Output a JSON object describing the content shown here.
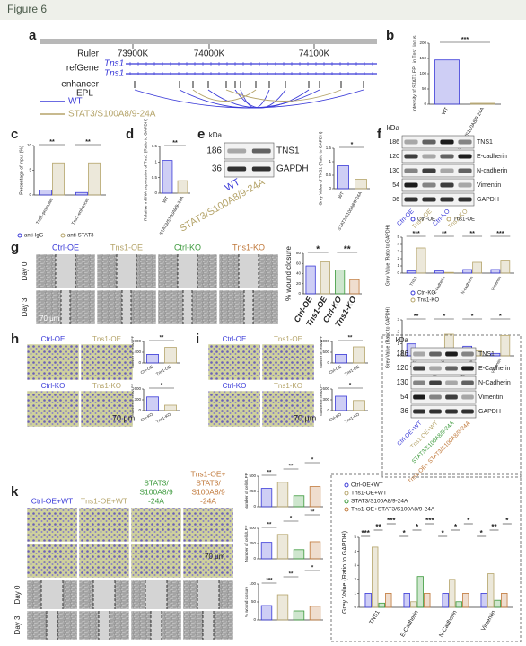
{
  "header": {
    "title": "Figure 6"
  },
  "a": {
    "letter": "a",
    "ruler": "Ruler",
    "ruler_marks": [
      "73900K",
      "74000K",
      "74100K"
    ],
    "refgene": "refGene",
    "genes": [
      "Tns1",
      "Tns1"
    ],
    "enhancer": "enhancer",
    "epl": "EPL",
    "legend": [
      {
        "name": "WT",
        "color": "#3a3ad8"
      },
      {
        "name": "STAT3/S100A8/9-24A",
        "color": "#b5a46a"
      }
    ]
  },
  "b": {
    "letter": "b",
    "chart": {
      "type": "bar",
      "ylabel": "Intensity of STAT3 EPL in Tns1 locus",
      "categories": [
        "WT",
        "STAT3/S100A8/9-24A"
      ],
      "values": [
        145,
        3
      ],
      "colors": [
        "#3a3ad8",
        "#b5a46a"
      ],
      "ylim": [
        0,
        200
      ],
      "yticks": [
        0,
        50,
        100,
        150,
        200
      ],
      "sig": [
        "***"
      ]
    }
  },
  "c": {
    "letter": "c",
    "chart": {
      "type": "bar",
      "ylabel": "Percentage of input (%)",
      "categories": [
        "Tns1-promoter",
        "Tns1-enhancer"
      ],
      "series": [
        {
          "name": "anti-IgG",
          "color": "#3a3ad8",
          "values": [
            1,
            0.5
          ]
        },
        {
          "name": "anti-STAT3",
          "color": "#b5a46a",
          "values": [
            6.5,
            6.5
          ]
        }
      ],
      "ylim": [
        0,
        10
      ],
      "yticks": [
        0,
        5,
        10
      ],
      "sig": [
        "**",
        "**"
      ]
    }
  },
  "d": {
    "letter": "d",
    "chart": {
      "type": "bar",
      "ylabel": "Relative mRNA expression of Tns1 (Ratio to GAPDH)",
      "categories": [
        "WT",
        "STAT3/S100A8/9-24A"
      ],
      "values": [
        1.05,
        0.4
      ],
      "colors": [
        "#3a3ad8",
        "#b5a46a"
      ],
      "ylim": [
        0,
        1.5
      ],
      "yticks": [
        0,
        0.5,
        1,
        1.5
      ],
      "sig": [
        "**"
      ]
    }
  },
  "e": {
    "letter": "e",
    "blot": {
      "unit": "kDa",
      "kda": [
        186,
        36
      ],
      "proteins": [
        "TNS1",
        "GAPDH"
      ],
      "lanes": [
        "WT",
        "STAT3/S100A8/9-24A"
      ],
      "lane_colors": [
        "#3a3ad8",
        "#b5a46a"
      ]
    },
    "chart": {
      "type": "bar",
      "ylabel": "Grey Value of TNS1 (Ratio to GAPDH)",
      "categories": [
        "WT",
        "STAT3/S100A8/9-24A"
      ],
      "values": [
        0.85,
        0.35
      ],
      "colors": [
        "#3a3ad8",
        "#b5a46a"
      ],
      "ylim": [
        0,
        1.5
      ],
      "yticks": [
        0,
        0.5,
        1,
        1.5
      ],
      "sig": [
        "*"
      ]
    }
  },
  "f": {
    "letter": "f",
    "blot": {
      "unit": "kDa",
      "kda": [
        186,
        120,
        130,
        54,
        36
      ],
      "proteins": [
        "TNS1",
        "E-cadherin",
        "N-cadherin",
        "Vimentin",
        "GAPDH"
      ],
      "lanes": [
        "Ctrl-OE",
        "Tns1-OE",
        "Ctrl-KO",
        "Tns1-KO"
      ],
      "lane_colors": [
        "#3a3ad8",
        "#b5a46a",
        "#3a3ad8",
        "#b5a46a"
      ]
    },
    "charts": [
      {
        "type": "bar",
        "ylabel": "Grey Value (Ratio to GAPDH)",
        "categories": [
          "TNS1",
          "E-cadherin",
          "N-cadherin",
          "Vimentin"
        ],
        "series": [
          {
            "name": "Ctrl-OE",
            "color": "#3a3ad8",
            "values": [
              0.3,
              0.3,
              0.5,
              0.5
            ]
          },
          {
            "name": "Tns1-OE",
            "color": "#b5a46a",
            "values": [
              3.5,
              0.1,
              1.5,
              1.8
            ]
          }
        ],
        "ylim": [
          0,
          5
        ],
        "yticks": [
          0,
          1,
          2,
          3,
          4,
          5
        ],
        "sig": [
          "***",
          "**",
          "**",
          "***"
        ]
      },
      {
        "type": "bar",
        "ylabel": "Grey Value (Ratio to GAPDH)",
        "categories": [
          "TNS1",
          "E-cadherin",
          "N-cadherin",
          "Vimentin"
        ],
        "series": [
          {
            "name": "Ctrl-KO",
            "color": "#3a3ad8",
            "values": [
              1,
              0.2,
              0.8,
              0.2
            ]
          },
          {
            "name": "Tns1-KO",
            "color": "#b5a46a",
            "values": [
              0.3,
              1.8,
              0.4,
              1.7
            ]
          }
        ],
        "ylim": [
          0,
          3
        ],
        "yticks": [
          0,
          1,
          2,
          3
        ],
        "sig": [
          "**",
          "*",
          "*",
          "*"
        ]
      }
    ]
  },
  "g": {
    "letter": "g",
    "columns": [
      "Ctrl-OE",
      "Tns1-OE",
      "Ctrl-KO",
      "Tns1-KO"
    ],
    "column_colors": [
      "#3a3ad8",
      "#b5a46a",
      "#3d9a3d",
      "#c0783a"
    ],
    "rows": [
      "Day 0",
      "Day 3"
    ],
    "scale": "70 μm",
    "chart": {
      "type": "bar",
      "ylabel": "% wound closure",
      "categories": [
        "Ctrl-OE",
        "Tns1-OE",
        "Ctrl-KO",
        "Tns1-KO"
      ],
      "values": [
        55,
        63,
        47,
        28
      ],
      "colors": [
        "#3a3ad8",
        "#b5a46a",
        "#3d9a3d",
        "#c0783a"
      ],
      "ylim": [
        0,
        80
      ],
      "yticks": [
        0,
        20,
        40,
        60,
        80
      ],
      "sig": [
        "*",
        "**"
      ]
    }
  },
  "h": {
    "letter": "h",
    "images": [
      [
        "Ctrl-OE",
        "Tns1-OE"
      ],
      [
        "Ctrl-KO",
        "Tns1-KO"
      ]
    ],
    "image_colors": [
      "#3a3ad8",
      "#b5a46a"
    ],
    "scale": "70 μm",
    "charts": [
      {
        "type": "bar",
        "ylabel": "Number of cells/LPF",
        "categories": [
          "Ctrl-OE",
          "Tns1-OE"
        ],
        "values": [
          320,
          580
        ],
        "colors": [
          "#3a3ad8",
          "#b5a46a"
        ],
        "ylim": [
          0,
          800
        ],
        "yticks": [
          0,
          400,
          800
        ],
        "sig": [
          "**"
        ]
      },
      {
        "type": "bar",
        "ylabel": "Number of cells/LPF",
        "categories": [
          "Ctrl-KO",
          "Tns1-KO"
        ],
        "values": [
          380,
          150
        ],
        "colors": [
          "#3a3ad8",
          "#b5a46a"
        ],
        "ylim": [
          0,
          600
        ],
        "yticks": [
          0,
          300,
          600
        ],
        "sig": [
          "*"
        ]
      }
    ]
  },
  "i": {
    "letter": "i",
    "images": [
      [
        "Ctrl-OE",
        "Tns1-OE"
      ],
      [
        "Ctrl-KO",
        "Tns1-KO"
      ]
    ],
    "image_colors": [
      "#3a3ad8",
      "#b5a46a"
    ],
    "scale": "70 μm",
    "charts": [
      {
        "type": "bar",
        "ylabel": "Number of cells/LPF",
        "categories": [
          "Ctrl-OE",
          "Tns1-OE"
        ],
        "values": [
          400,
          750
        ],
        "colors": [
          "#3a3ad8",
          "#b5a46a"
        ],
        "ylim": [
          0,
          1000
        ],
        "yticks": [
          0,
          500,
          1000
        ],
        "sig": [
          "**"
        ]
      },
      {
        "type": "bar",
        "ylabel": "Number of cells/LPF",
        "categories": [
          "Ctrl-KO",
          "Tns1-KO"
        ],
        "values": [
          400,
          280
        ],
        "colors": [
          "#3a3ad8",
          "#b5a46a"
        ],
        "ylim": [
          0,
          600
        ],
        "yticks": [
          0,
          300,
          600
        ],
        "sig": [
          "*"
        ]
      }
    ]
  },
  "blot2": {
    "unit": "kDa",
    "kda": [
      186,
      120,
      130,
      54,
      36
    ],
    "proteins": [
      "TNS1",
      "E-Cadherin",
      "N-Cadherin",
      "Vimentin",
      "GAPDH"
    ],
    "lanes": [
      "Ctrl-OE+WT",
      "Tns1-OE+WT",
      "STAT3/S100A8/9-24A",
      "Tns1-OE+ STAT3/S100A8/9-24A"
    ],
    "lane_colors": [
      "#3a3ad8",
      "#b5a46a",
      "#3d9a3d",
      "#c0783a"
    ]
  },
  "k": {
    "letter": "k",
    "columns": [
      [
        "Ctrl-OE+WT"
      ],
      [
        "Tns1-OE+WT"
      ],
      [
        "STAT3/",
        "S100A8/9",
        "-24A"
      ],
      [
        "Tns1-OE+",
        "STAT3/",
        "S100A8/9",
        "-24A"
      ]
    ],
    "column_colors": [
      "#3a3ad8",
      "#b5a46a",
      "#3d9a3d",
      "#c0783a"
    ],
    "rows": [
      "Day 0",
      "Day 3"
    ],
    "scale": "70 μm",
    "charts": [
      {
        "type": "bar",
        "ylabel": "Number of cells/LPF",
        "categories": null,
        "values": [
          300,
          400,
          180,
          330
        ],
        "colors": [
          "#3a3ad8",
          "#b5a46a",
          "#3d9a3d",
          "#c0783a"
        ],
        "ylim": [
          0,
          500
        ],
        "yticks": [
          0,
          250,
          500
        ],
        "sig": [
          "**",
          "**",
          "*"
        ]
      },
      {
        "type": "bar",
        "ylabel": "Number of cells/LPF",
        "categories": null,
        "values": [
          270,
          400,
          150,
          280
        ],
        "colors": [
          "#3a3ad8",
          "#b5a46a",
          "#3d9a3d",
          "#c0783a"
        ],
        "ylim": [
          0,
          500
        ],
        "yticks": [
          0,
          250,
          500
        ],
        "sig": [
          "**",
          "*",
          "**"
        ]
      },
      {
        "type": "bar",
        "ylabel": "% wound closure",
        "categories": null,
        "values": [
          40,
          70,
          25,
          38
        ],
        "colors": [
          "#3a3ad8",
          "#b5a46a",
          "#3d9a3d",
          "#c0783a"
        ],
        "ylim": [
          0,
          100
        ],
        "yticks": [
          0,
          50,
          100
        ],
        "sig": [
          "***",
          "**",
          "*"
        ]
      }
    ]
  },
  "l": {
    "chart": {
      "type": "bar",
      "ylabel": "Grey Value (Ratio to GAPDH)",
      "categories": [
        "TNS1",
        "E-Cadherin",
        "N-Cadherin",
        "Vimentin"
      ],
      "series": [
        {
          "name": "Ctrl-OE+WT",
          "color": "#3a3ad8",
          "values": [
            1,
            1,
            1,
            1
          ]
        },
        {
          "name": "Tns1-OE+WT",
          "color": "#b5a46a",
          "values": [
            4.3,
            0.4,
            2,
            2.4
          ]
        },
        {
          "name": "STAT3/S100A8/9-24A",
          "color": "#3d9a3d",
          "values": [
            0.3,
            2.2,
            0.4,
            0.5
          ]
        },
        {
          "name": "Tns1-OE+STAT3/S100A8/9-24A",
          "color": "#c0783a",
          "values": [
            1,
            1,
            1,
            1
          ]
        }
      ],
      "ylim": [
        0,
        5
      ],
      "yticks": [
        0,
        1,
        2,
        3,
        4,
        5
      ],
      "sig": [
        "***",
        "**",
        "***",
        "*",
        "*",
        "***",
        "*",
        "*",
        "*",
        "*",
        "**",
        "*"
      ]
    }
  }
}
